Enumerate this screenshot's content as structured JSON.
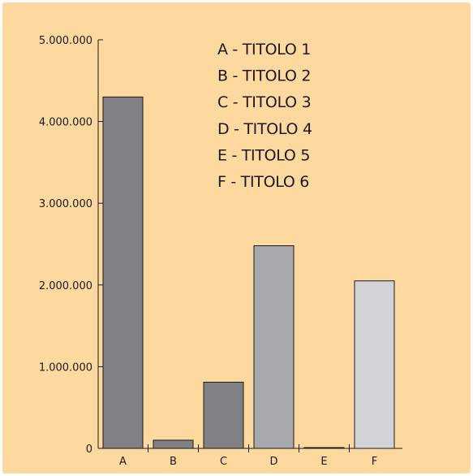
{
  "chart_data": {
    "type": "bar",
    "title": "",
    "xlabel": "",
    "ylabel": "",
    "categories": [
      "A",
      "B",
      "C",
      "D",
      "E",
      "F"
    ],
    "values": [
      4300000,
      100000,
      810000,
      2480000,
      10000,
      2050000
    ],
    "colors": [
      "#808085",
      "#808085",
      "#808085",
      "#a7a8ad",
      "#a7a8ad",
      "#d1d3d6"
    ],
    "ylim": [
      0,
      5000000
    ],
    "yticks": [
      0,
      1000000,
      2000000,
      3000000,
      4000000,
      5000000
    ],
    "ytick_labels": [
      "0",
      "1.000.000",
      "2.000.000",
      "3.000.000",
      "4.000.000",
      "5.000.000"
    ],
    "grid": false,
    "legend_placement": "top-center",
    "legend": [
      "A - TITOLO 1",
      "B - TITOLO 2",
      "C - TITOLO 3",
      "D - TITOLO 4",
      "E - TITOLO 5",
      "F - TITOLO 6"
    ]
  }
}
